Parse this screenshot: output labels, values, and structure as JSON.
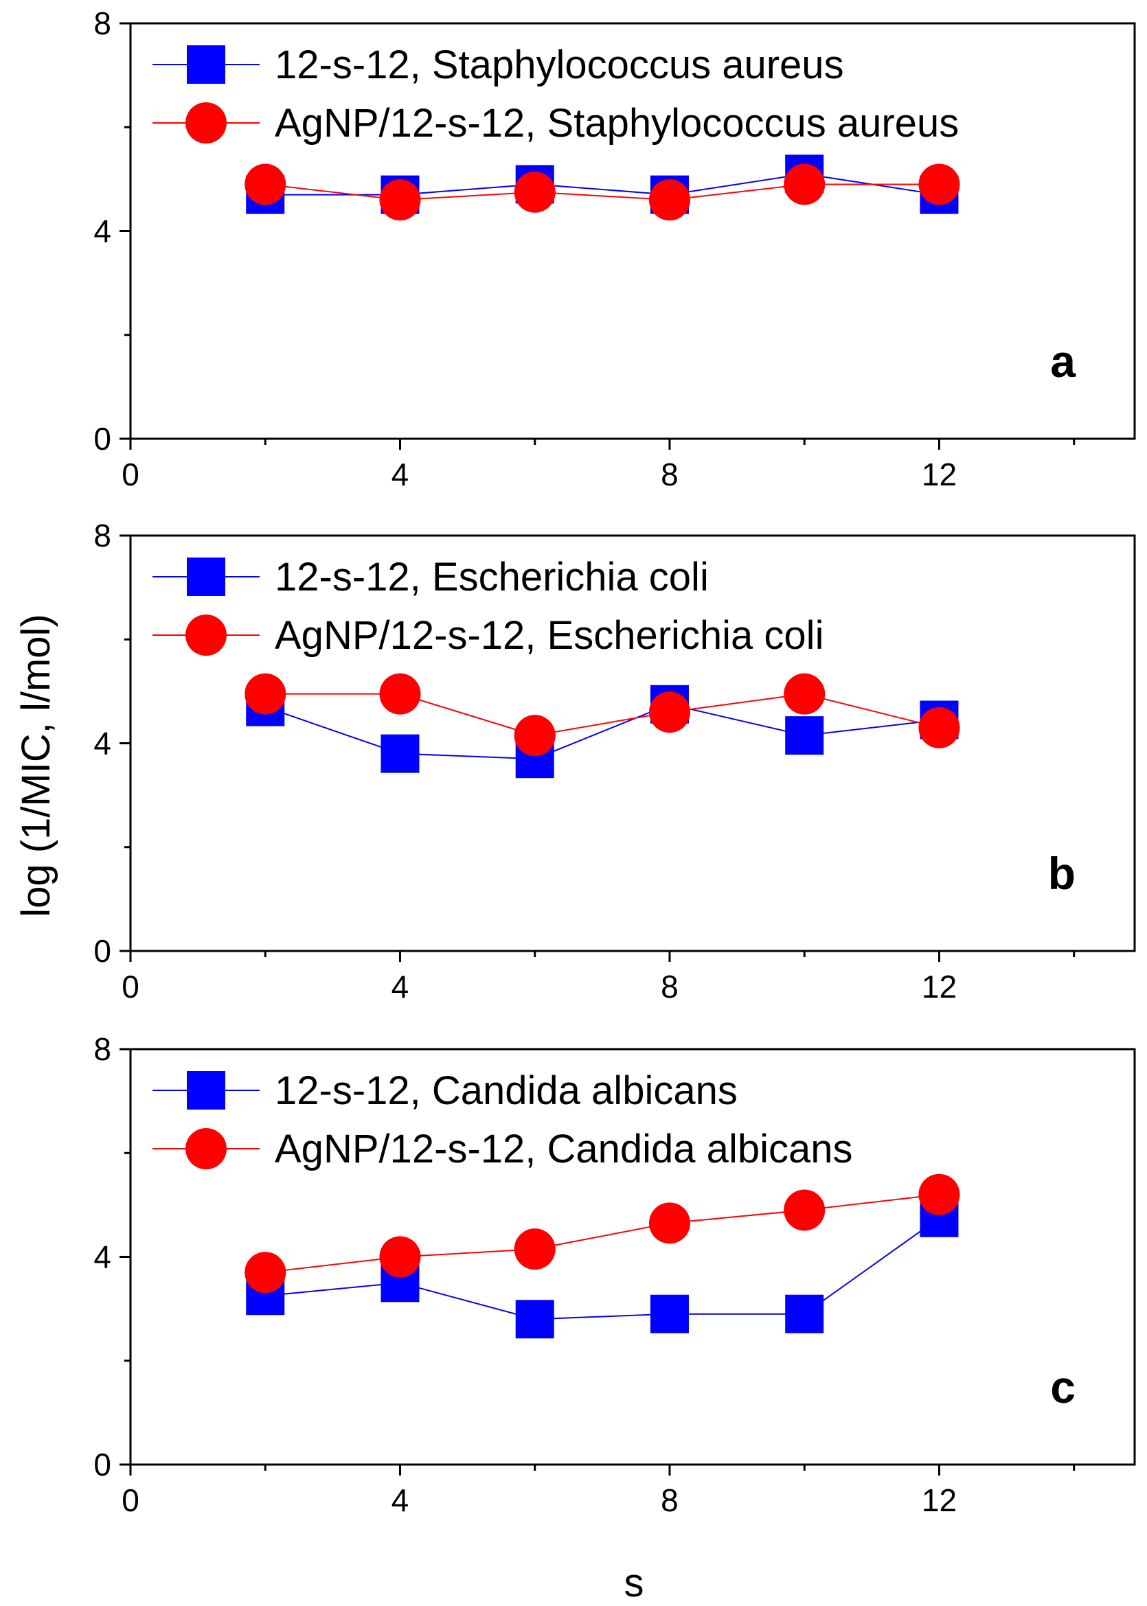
{
  "chart_data": [
    {
      "type": "line",
      "panel_label": "a",
      "xlim": [
        0,
        14.9
      ],
      "ylim": [
        0,
        8
      ],
      "xticks": [
        0,
        4,
        8,
        12
      ],
      "yticks": [
        0,
        4,
        8
      ],
      "x": [
        2,
        4,
        6,
        8,
        10,
        12
      ],
      "series": [
        {
          "name": "12-s-12, Staphylococcus aureus",
          "color": "#0000ff",
          "marker": "square",
          "values": [
            4.7,
            4.7,
            4.9,
            4.7,
            5.1,
            4.7
          ]
        },
        {
          "name": "AgNP/12-s-12, Staphylococcus aureus",
          "color": "#ff0000",
          "marker": "circle",
          "values": [
            4.9,
            4.6,
            4.75,
            4.6,
            4.9,
            4.9
          ]
        }
      ],
      "legend": "top-left"
    },
    {
      "type": "line",
      "panel_label": "b",
      "xlim": [
        0,
        14.9
      ],
      "ylim": [
        0,
        8
      ],
      "xticks": [
        0,
        4,
        8,
        12
      ],
      "yticks": [
        0,
        4,
        8
      ],
      "x": [
        2,
        4,
        6,
        8,
        10,
        12
      ],
      "series": [
        {
          "name": "12-s-12, Escherichia coli",
          "color": "#0000ff",
          "marker": "square",
          "values": [
            4.7,
            3.8,
            3.7,
            4.75,
            4.15,
            4.45
          ]
        },
        {
          "name": "AgNP/12-s-12, Escherichia coli",
          "color": "#ff0000",
          "marker": "circle",
          "values": [
            4.95,
            4.95,
            4.15,
            4.6,
            4.95,
            4.3
          ]
        }
      ],
      "legend": "top-left"
    },
    {
      "type": "line",
      "panel_label": "c",
      "xlim": [
        0,
        14.9
      ],
      "ylim": [
        0,
        8
      ],
      "xticks": [
        0,
        4,
        8,
        12
      ],
      "yticks": [
        0,
        4,
        8
      ],
      "x": [
        2,
        4,
        6,
        8,
        10,
        12
      ],
      "series": [
        {
          "name": "12-s-12, Candida albicans",
          "color": "#0000ff",
          "marker": "square",
          "values": [
            3.25,
            3.5,
            2.8,
            2.9,
            2.9,
            4.75
          ]
        },
        {
          "name": "AgNP/12-s-12, Candida albicans",
          "color": "#ff0000",
          "marker": "circle",
          "values": [
            3.7,
            4.0,
            4.15,
            4.65,
            4.9,
            5.2
          ]
        }
      ],
      "legend": "top-left"
    }
  ],
  "ylabel": "log (1/MIC, l/mol)",
  "xlabel": "s",
  "colors": {
    "series1": "#0000ff",
    "series2": "#ff0000",
    "axis": "#000000"
  }
}
